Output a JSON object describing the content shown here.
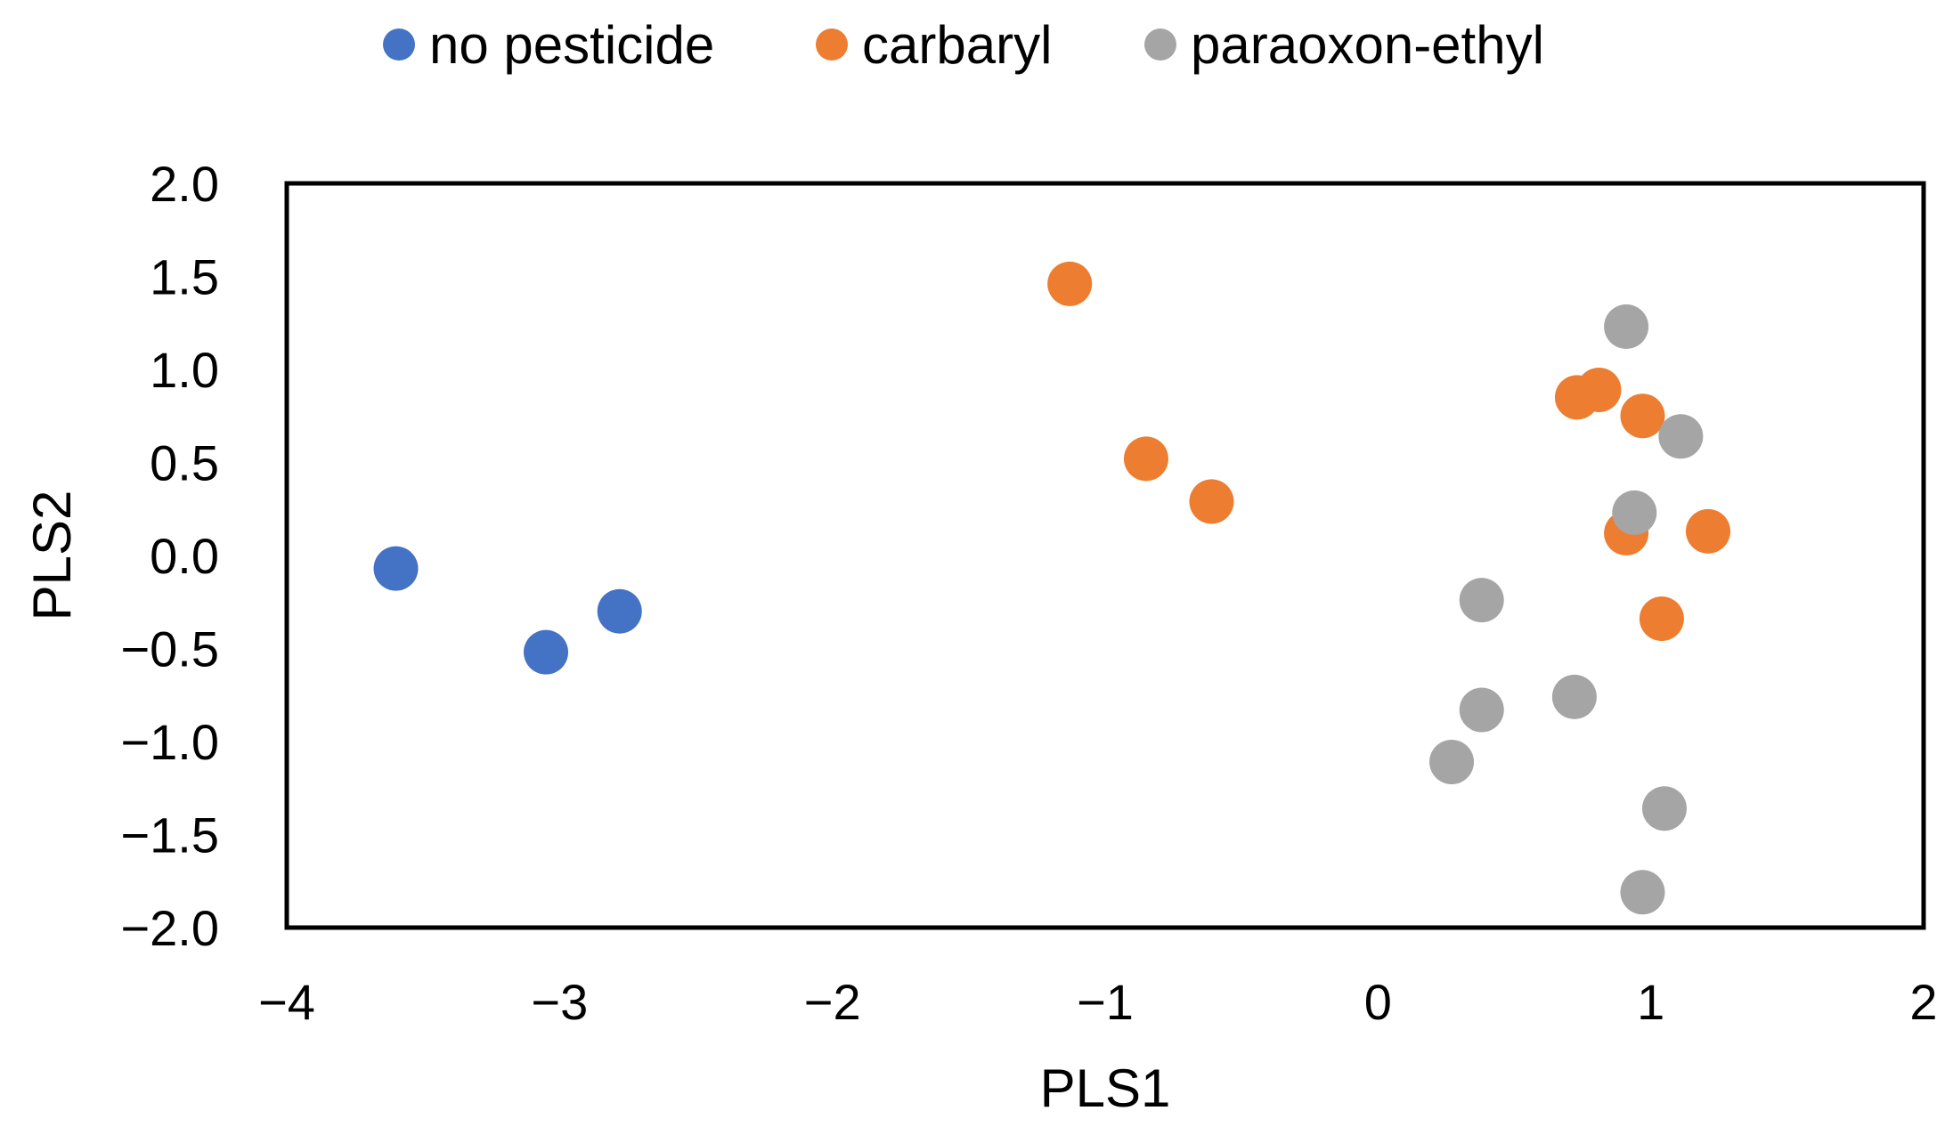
{
  "chart_data": {
    "type": "scatter",
    "title": "",
    "xlabel": "PLS1",
    "ylabel": "PLS2",
    "xlim": [
      -4,
      2
    ],
    "ylim": [
      -2.0,
      2.0
    ],
    "x_ticks": [
      -4,
      -3,
      -2,
      -1,
      0,
      1,
      2
    ],
    "x_tick_labels": [
      "−4",
      "−3",
      "−2",
      "−1",
      "0",
      "1",
      "2"
    ],
    "y_ticks": [
      2.0,
      1.5,
      1.0,
      0.5,
      0.0,
      -0.5,
      -1.0,
      -1.5,
      -2.0
    ],
    "y_tick_labels": [
      "2.0",
      "1.5",
      "1.0",
      "0.5",
      "0.0",
      "−0.5",
      "−1.0",
      "−1.5",
      "−2.0"
    ],
    "grid": false,
    "legend_position": "top-center",
    "series": [
      {
        "name": "no pesticide",
        "color": "#4472C4",
        "points": [
          {
            "x": -3.6,
            "y": -0.07
          },
          {
            "x": -3.05,
            "y": -0.52
          },
          {
            "x": -2.78,
            "y": -0.3
          }
        ]
      },
      {
        "name": "carbaryl",
        "color": "#ED7D31",
        "points": [
          {
            "x": -1.13,
            "y": 1.46
          },
          {
            "x": -0.85,
            "y": 0.52
          },
          {
            "x": -0.61,
            "y": 0.29
          },
          {
            "x": 0.73,
            "y": 0.85
          },
          {
            "x": 0.81,
            "y": 0.89
          },
          {
            "x": 0.97,
            "y": 0.75
          },
          {
            "x": 0.91,
            "y": 0.12
          },
          {
            "x": 1.21,
            "y": 0.13
          },
          {
            "x": 1.04,
            "y": -0.34
          }
        ]
      },
      {
        "name": "paraoxon-ethyl",
        "color": "#A5A5A5",
        "points": [
          {
            "x": 0.91,
            "y": 1.23
          },
          {
            "x": 1.11,
            "y": 0.64
          },
          {
            "x": 0.94,
            "y": 0.23
          },
          {
            "x": 0.38,
            "y": -0.24
          },
          {
            "x": 0.38,
            "y": -0.83
          },
          {
            "x": 0.72,
            "y": -0.76
          },
          {
            "x": 0.27,
            "y": -1.11
          },
          {
            "x": 1.05,
            "y": -1.36
          },
          {
            "x": 0.97,
            "y": -1.81
          }
        ]
      }
    ]
  }
}
